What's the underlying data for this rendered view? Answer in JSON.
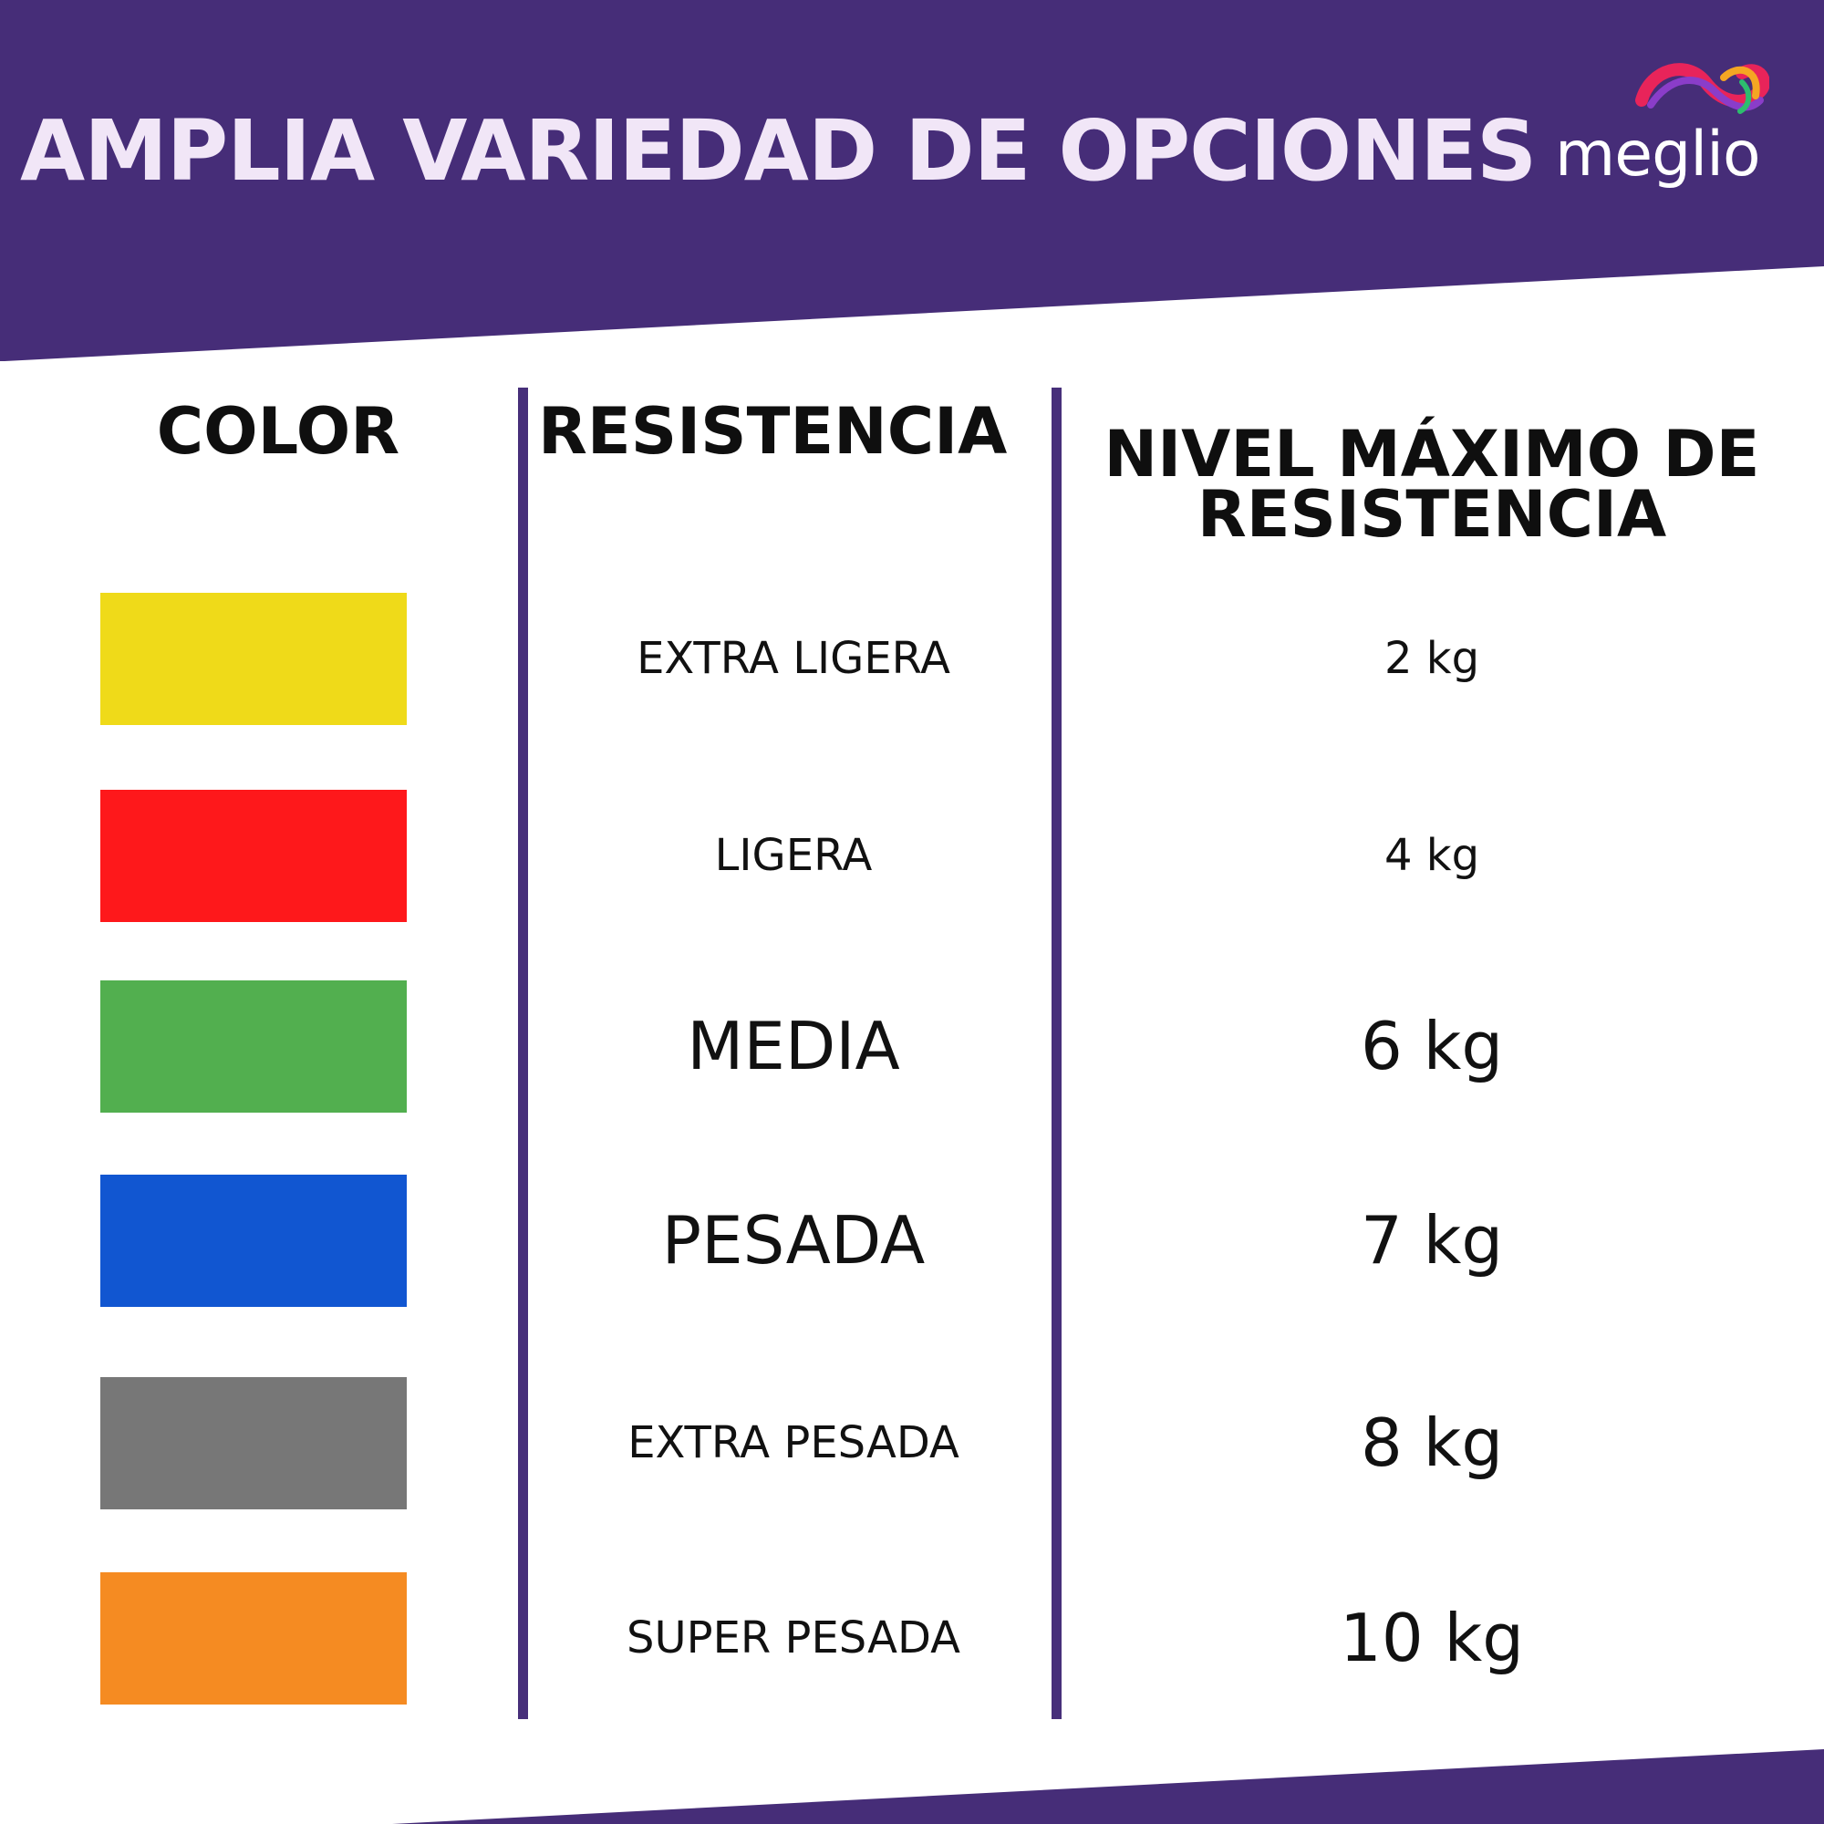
{
  "banner": {
    "title": "AMPLIA VARIEDAD DE OPCIONES",
    "background_color": "#462d78",
    "title_color": "#f1e6f7"
  },
  "logo": {
    "text": "meglio"
  },
  "table": {
    "headers": {
      "color": "COLOR",
      "resistance": "RESISTENCIA",
      "max_level_line1": "NIVEL MÁXIMO DE",
      "max_level_line2": "RESISTENCIA"
    },
    "divider_color": "#472f7a",
    "rows": [
      {
        "color_hex": "#efda19",
        "resistance": "EXTRA LIGERA",
        "max": "2 kg"
      },
      {
        "color_hex": "#fe181b",
        "resistance": "LIGERA",
        "max": "4 kg"
      },
      {
        "color_hex": "#52af4f",
        "resistance": "MEDIA",
        "max": "6 kg"
      },
      {
        "color_hex": "#1156d1",
        "resistance": "PESADA",
        "max": "7 kg"
      },
      {
        "color_hex": "#777777",
        "resistance": "EXTRA PESADA",
        "max": "8 kg"
      },
      {
        "color_hex": "#f58b22",
        "resistance": "SUPER PESADA",
        "max": "10 kg"
      }
    ]
  }
}
